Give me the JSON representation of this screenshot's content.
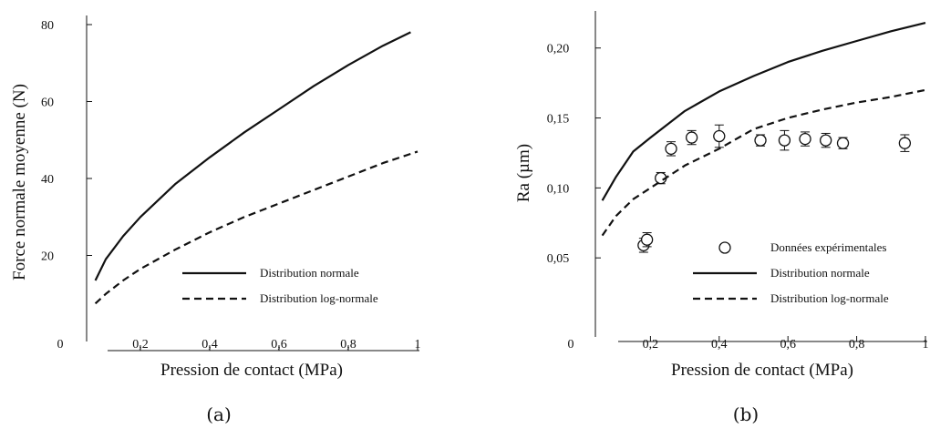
{
  "chart_data": [
    {
      "panel_label": "(a)",
      "type": "line",
      "xlabel": "Pression de contact  (MPa)",
      "ylabel": "Force normale moyenne   (N)",
      "xlim": [
        0,
        1
      ],
      "ylim": [
        0,
        80
      ],
      "xticks": [
        "0",
        "0,2",
        "0,4",
        "0,6",
        "0,8",
        "1"
      ],
      "xtick_values": [
        0,
        0.2,
        0.4,
        0.6,
        0.8,
        1
      ],
      "yticks": [
        "20",
        "40",
        "60",
        "80"
      ],
      "ytick_values": [
        20,
        40,
        60,
        80
      ],
      "legend_position": "bottom-right",
      "series": [
        {
          "name": "Distribution normale",
          "style": "solid",
          "x": [
            0.07,
            0.1,
            0.15,
            0.2,
            0.3,
            0.4,
            0.5,
            0.6,
            0.7,
            0.8,
            0.9,
            0.98
          ],
          "y": [
            13.5,
            19,
            25,
            30,
            38.5,
            45.5,
            52,
            58,
            64,
            69.5,
            74.5,
            78
          ]
        },
        {
          "name": "Distribution log-normale",
          "style": "dashed",
          "x": [
            0.07,
            0.1,
            0.15,
            0.2,
            0.3,
            0.4,
            0.5,
            0.6,
            0.7,
            0.8,
            0.9,
            1.0
          ],
          "y": [
            7.5,
            10,
            13.5,
            16.5,
            21.5,
            26,
            30,
            33.5,
            37,
            40.5,
            44,
            47
          ]
        }
      ]
    },
    {
      "panel_label": "(b)",
      "type": "line",
      "xlabel": "Pression de contact  (MPa)",
      "ylabel": "Ra  (µm)",
      "xlim": [
        0,
        1
      ],
      "ylim": [
        0,
        0.22
      ],
      "xticks": [
        "0",
        "0,2",
        "0,4",
        "0,6",
        "0,8",
        "1"
      ],
      "xtick_values": [
        0,
        0.2,
        0.4,
        0.6,
        0.8,
        1
      ],
      "yticks": [
        "0,05",
        "0,10",
        "0,15",
        "0,20"
      ],
      "ytick_values": [
        0.05,
        0.1,
        0.15,
        0.2
      ],
      "legend_position": "bottom-right",
      "series": [
        {
          "name": "Données expérimentales",
          "style": "markers",
          "x": [
            0.18,
            0.19,
            0.23,
            0.26,
            0.32,
            0.4,
            0.52,
            0.59,
            0.65,
            0.71,
            0.76,
            0.94
          ],
          "y": [
            0.059,
            0.063,
            0.107,
            0.128,
            0.136,
            0.137,
            0.134,
            0.134,
            0.135,
            0.134,
            0.132,
            0.132
          ],
          "err": [
            0.005,
            0.005,
            0.004,
            0.005,
            0.005,
            0.008,
            0.004,
            0.007,
            0.005,
            0.005,
            0.004,
            0.006
          ]
        },
        {
          "name": "Distribution normale",
          "style": "solid",
          "x": [
            0.06,
            0.1,
            0.15,
            0.2,
            0.3,
            0.4,
            0.5,
            0.6,
            0.7,
            0.8,
            0.9,
            1.0
          ],
          "y": [
            0.091,
            0.108,
            0.126,
            0.136,
            0.155,
            0.169,
            0.18,
            0.19,
            0.198,
            0.205,
            0.212,
            0.218
          ]
        },
        {
          "name": "Distribution log-normale",
          "style": "dashed",
          "x": [
            0.06,
            0.1,
            0.15,
            0.2,
            0.3,
            0.4,
            0.5,
            0.6,
            0.7,
            0.8,
            0.9,
            1.0
          ],
          "y": [
            0.066,
            0.08,
            0.092,
            0.1,
            0.116,
            0.128,
            0.142,
            0.15,
            0.156,
            0.161,
            0.165,
            0.17
          ]
        }
      ]
    }
  ]
}
